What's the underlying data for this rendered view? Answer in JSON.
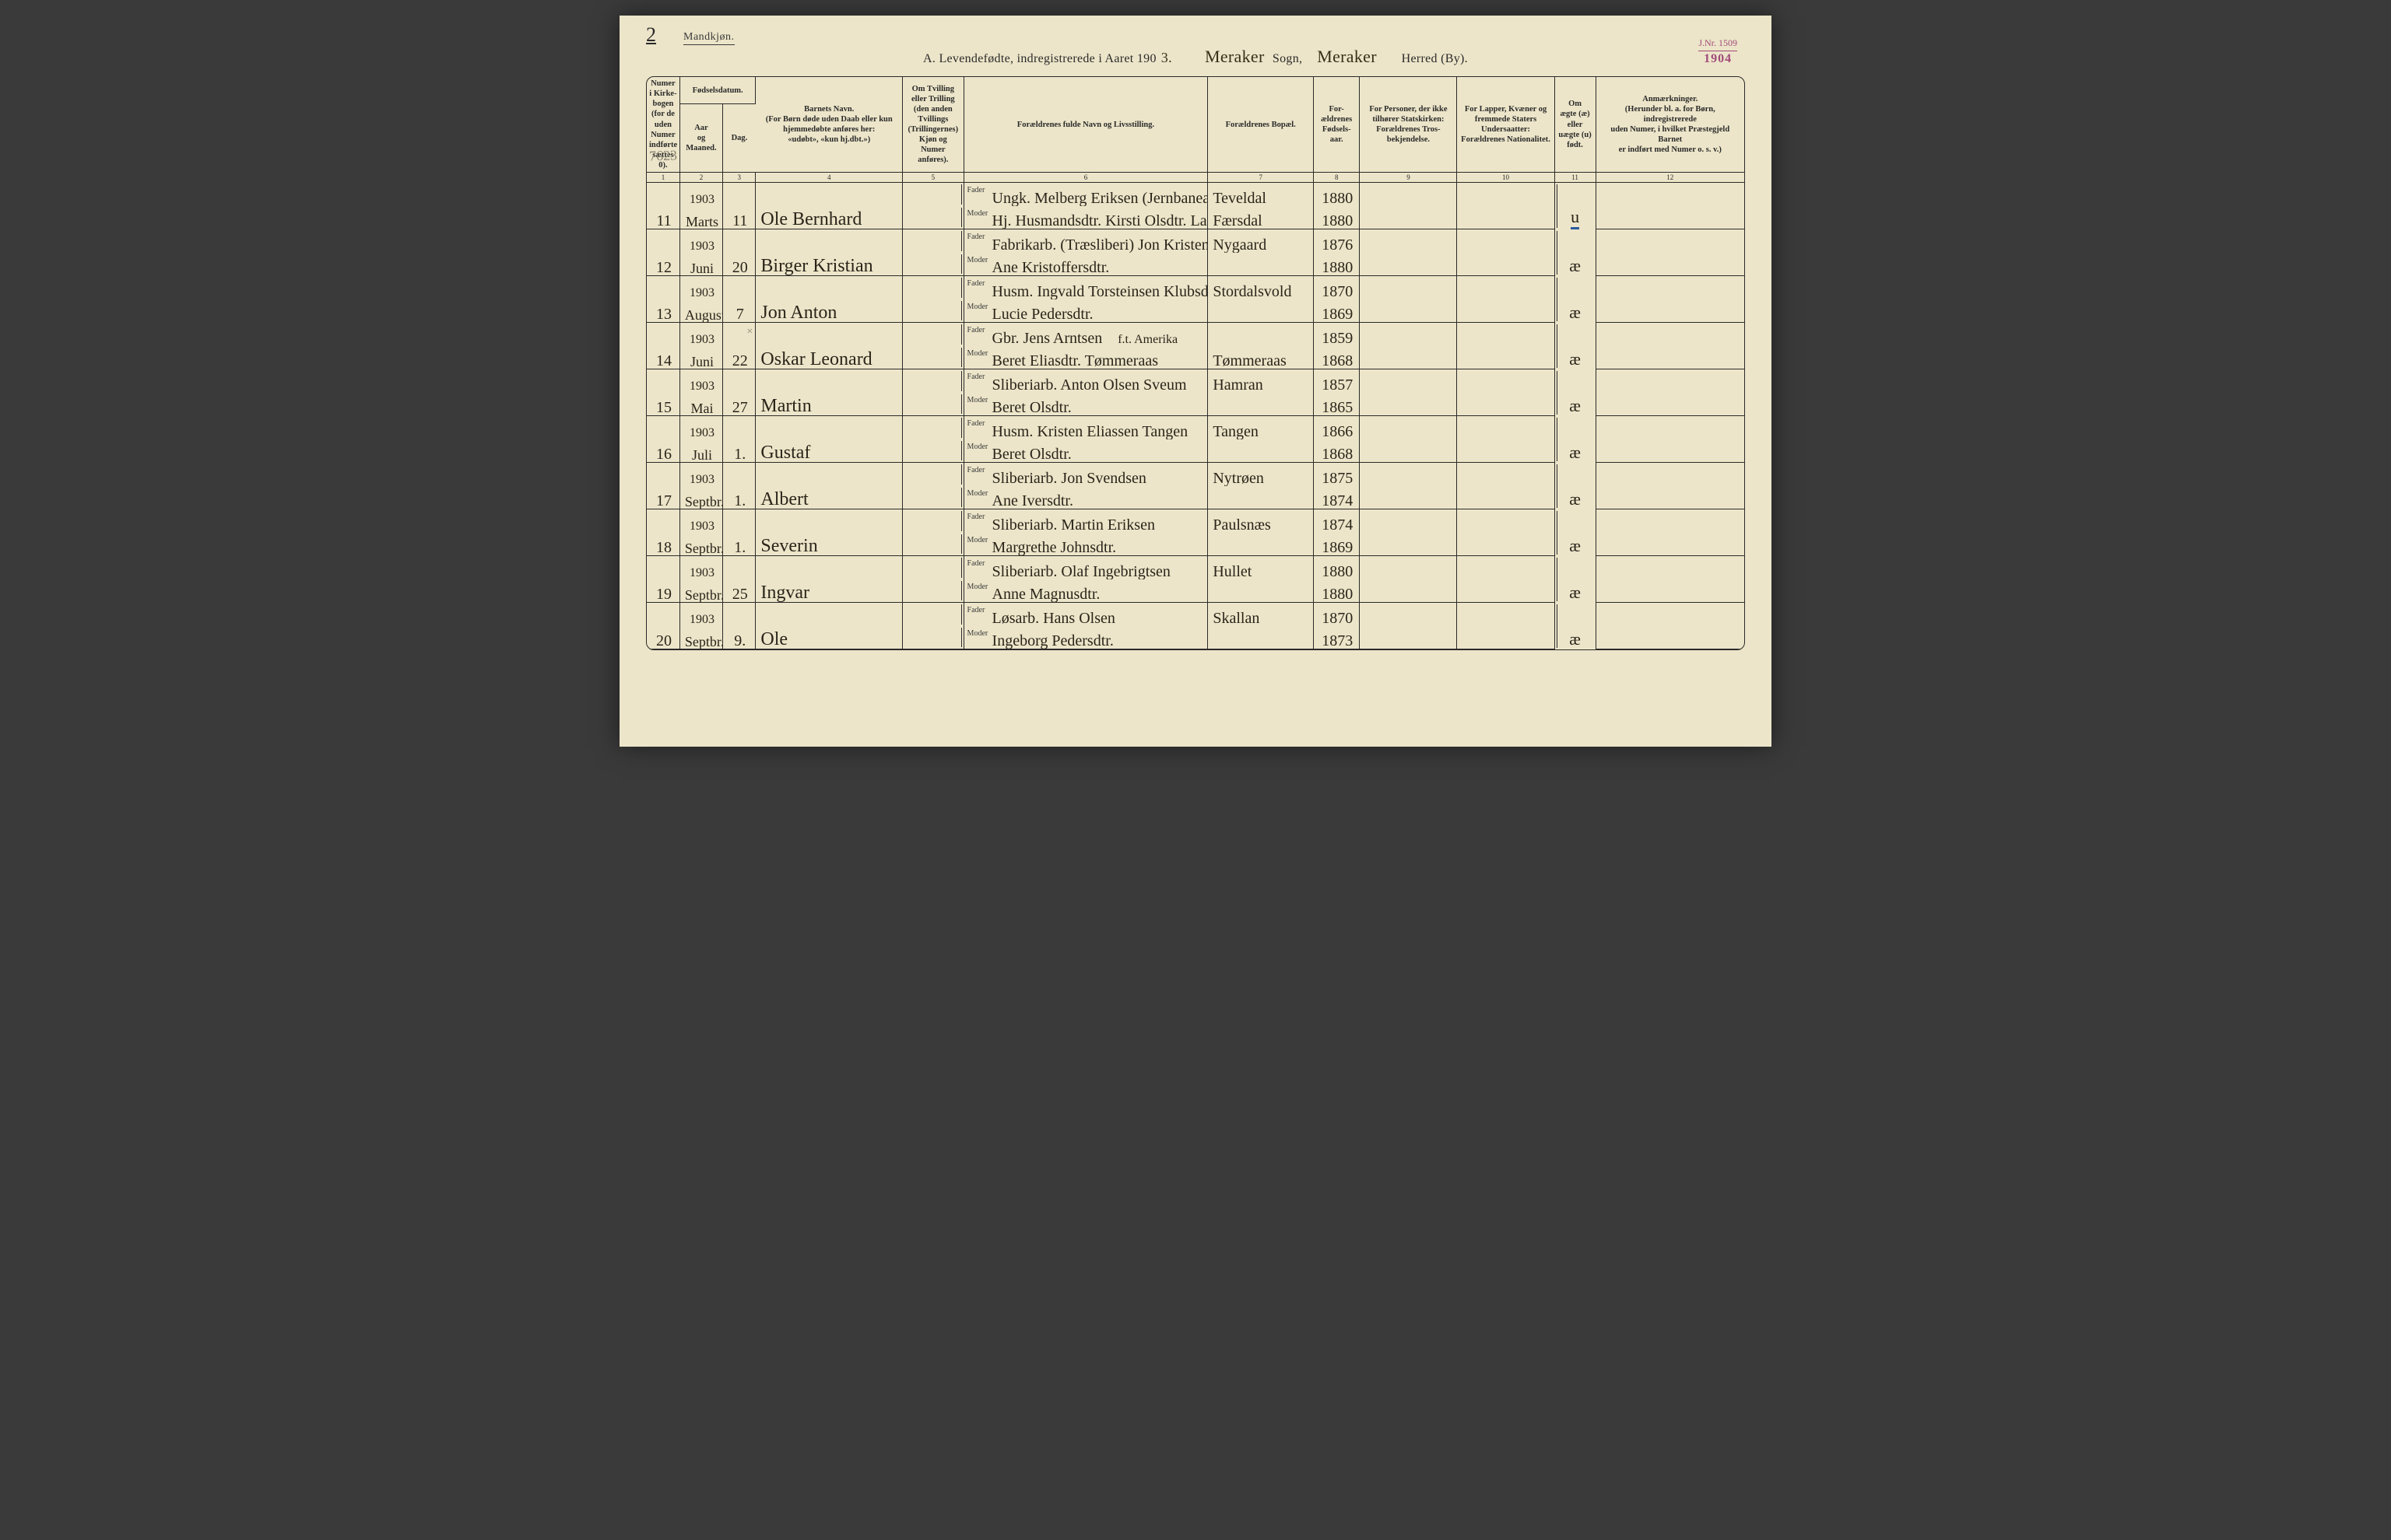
{
  "page": {
    "number": "2",
    "gender": "Mandkjøn.",
    "title_prefix": "A.  Levendefødte, indregistrerede i Aaret 190",
    "title_year_hand": "3.",
    "sogn_hand": "Meraker",
    "sogn_label": "Sogn,",
    "herred_hand": "Meraker",
    "herred_label": "Herred (By).",
    "stamp": {
      "line1": "J.Nr. 1509",
      "line2": "1904"
    },
    "pencil_note": "7623"
  },
  "columns": {
    "h1": "Numer\ni Kirke-\nbogen\n(for de\nuden\nNumer\nindførte\nsættes\n0).",
    "h2a": "Fødselsdatum.",
    "h2b": "Aar\nog\nMaaned.",
    "h2c": "Dag.",
    "h4": "Barnets Navn.\n(For Børn døde uden Daab eller kun\nhjemmedøbte anføres her:\n«udøbt», «kun hj.dbt.»)",
    "h5": "Om Tvilling\neller Trilling\n(den anden\nTvillings\n(Trillingernes)\nKjøn og\nNumer\nanføres).",
    "h6": "Forældrenes fulde Navn og Livsstilling.",
    "h7": "Forældrenes Bopæl.",
    "h8": "For-\nældrenes\nFødsels-\naar.",
    "h9": "For Personer, der ikke\ntilhører Statskirken:\nForældrenes Tros-\nbekjendelse.",
    "h10": "For Lapper, Kvæner og\nfremmede Staters\nUndersaatter:\nForældrenes Nationalitet.",
    "h11": "Om\nægte (æ)\neller\nuægte (u)\nfødt.",
    "h12": "Anmærkninger.\n(Herunder bl. a. for Børn, indregistrerede\nuden Numer, i hvilket Præstegjeld Barnet\ner indført med Numer o. s. v.)",
    "nums": [
      "1",
      "2",
      "3",
      "4",
      "5",
      "6",
      "7",
      "8",
      "9",
      "10",
      "11",
      "12"
    ]
  },
  "labels": {
    "fader": "Fader",
    "moder": "Moder"
  },
  "rows": [
    {
      "num": "11",
      "year": "1903",
      "month": "Marts",
      "day": "11",
      "name": "Ole Bernhard",
      "fader": "Ungk. Melberg Eriksen (Jernbanearb.)",
      "moder": "Hj. Husmandsdtr. Kirsti Olsdtr. Langsævold",
      "bopael_f": "Teveldal",
      "bopael_m": "Færsdal",
      "aar_f": "1880",
      "aar_m": "1880",
      "mark": "u",
      "mark_underline": true
    },
    {
      "num": "12",
      "year": "1903",
      "month": "Juni",
      "day": "20",
      "name": "Birger Kristian",
      "fader": "Fabrikarb. (Træsliberi) Jon Kristensen",
      "moder": "Ane Kristoffersdtr.",
      "bopael_f": "Nygaard",
      "bopael_m": "",
      "aar_f": "1876",
      "aar_m": "1880",
      "mark": "æ"
    },
    {
      "num": "13",
      "year": "1903",
      "month": "August",
      "day": "7",
      "name": "Jon Anton",
      "fader": "Husm. Ingvald Torsteinsen Klubsdal",
      "moder": "Lucie Pedersdtr.",
      "bopael_f": "Stordalsvold",
      "bopael_m": "",
      "aar_f": "1870",
      "aar_m": "1869",
      "mark": "æ"
    },
    {
      "num": "14",
      "year": "1903",
      "month": "Juni",
      "day": "22",
      "name": "Oskar Leonard",
      "fader": "Gbr. Jens Arntsen",
      "fader_extra": "f.t. Amerika",
      "moder": "Beret Eliasdtr. Tømmeraas",
      "bopael_f": "",
      "bopael_m": "Tømmeraas",
      "aar_f": "1859",
      "aar_m": "1868",
      "mark": "æ",
      "cross": true
    },
    {
      "num": "15",
      "year": "1903",
      "month": "Mai",
      "day": "27",
      "name": "Martin",
      "fader": "Sliberiarb. Anton Olsen Sveum",
      "moder": "Beret Olsdtr.",
      "bopael_f": "Hamran",
      "bopael_m": "",
      "aar_f": "1857",
      "aar_m": "1865",
      "mark": "æ"
    },
    {
      "num": "16",
      "year": "1903",
      "month": "Juli",
      "day": "1.",
      "name": "Gustaf",
      "fader": "Husm. Kristen Eliassen Tangen",
      "moder": "Beret Olsdtr.",
      "bopael_f": "Tangen",
      "bopael_m": "",
      "aar_f": "1866",
      "aar_m": "1868",
      "mark": "æ"
    },
    {
      "num": "17",
      "year": "1903",
      "month": "Septbr.",
      "day": "1.",
      "name": "Albert",
      "fader": "Sliberiarb. Jon Svendsen",
      "moder": "Ane Iversdtr.",
      "bopael_f": "Nytrøen",
      "bopael_m": "",
      "aar_f": "1875",
      "aar_m": "1874",
      "mark": "æ"
    },
    {
      "num": "18",
      "year": "1903",
      "month": "Septbr.",
      "day": "1.",
      "name": "Severin",
      "fader": "Sliberiarb. Martin Eriksen",
      "moder": "Margrethe Johnsdtr.",
      "bopael_f": "Paulsnæs",
      "bopael_m": "",
      "aar_f": "1874",
      "aar_m": "1869",
      "mark": "æ"
    },
    {
      "num": "19",
      "year": "1903",
      "month": "Septbr.",
      "day": "25",
      "name": "Ingvar",
      "fader": "Sliberiarb. Olaf Ingebrigtsen",
      "moder": "Anne Magnusdtr.",
      "bopael_f": "Hullet",
      "bopael_m": "",
      "aar_f": "1880",
      "aar_m": "1880",
      "mark": "æ"
    },
    {
      "num": "20",
      "year": "1903",
      "month": "Septbr.",
      "day": "9.",
      "name": "Ole",
      "fader": "Løsarb. Hans Olsen",
      "moder": "Ingeborg Pedersdtr.",
      "bopael_f": "Skallan",
      "bopael_m": "",
      "aar_f": "1870",
      "aar_m": "1873",
      "mark": "æ"
    }
  ]
}
